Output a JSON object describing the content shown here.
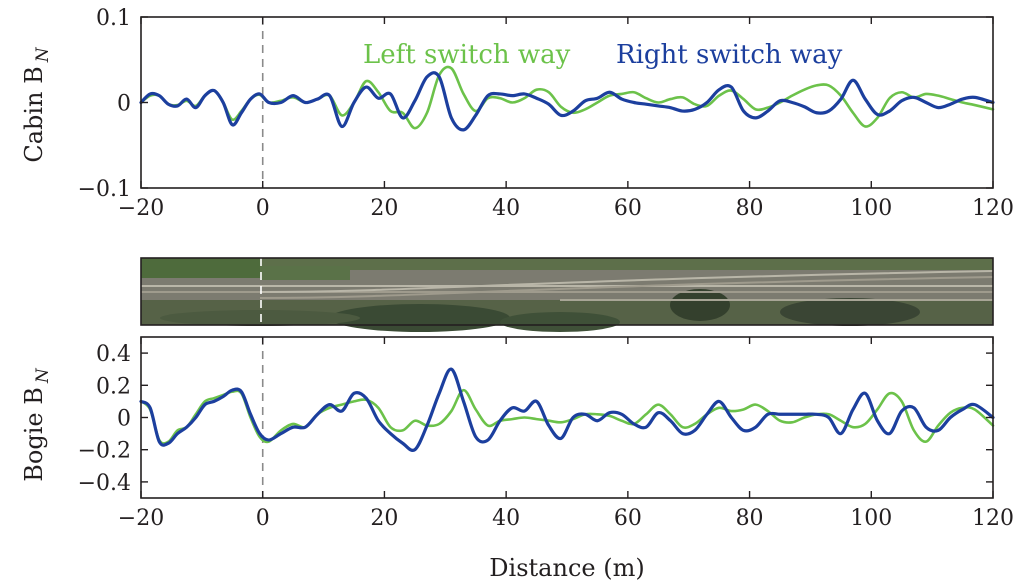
{
  "colors": {
    "left_switch": "#6cc24a",
    "right_switch": "#1c3f9e",
    "axis": "#231f20",
    "reference_line": "#8a8a8a"
  },
  "legend": {
    "left": "Left switch way",
    "right": "Right switch way"
  },
  "xlabel": "Distance (m)",
  "chart_data": [
    {
      "type": "line",
      "ylabel_main": "Cabin B",
      "ylabel_sub": "N",
      "xlim": [
        -20,
        120
      ],
      "ylim": [
        -0.1,
        0.1
      ],
      "xticks": [
        "−20",
        "0",
        "20",
        "40",
        "60",
        "80",
        "100",
        "120"
      ],
      "yticks": [
        "0.1",
        "0",
        "−0.1"
      ],
      "xtick_values": [
        -20,
        0,
        20,
        40,
        60,
        80,
        100,
        120
      ],
      "ytick_values": [
        0.1,
        0,
        -0.1
      ],
      "reference_x": 0,
      "series": [
        {
          "name": "Left switch way",
          "x": [
            -20,
            -18.5,
            -17,
            -15.5,
            -14,
            -12.5,
            -11,
            -9.5,
            -8,
            -6.5,
            -5,
            -3.5,
            -2,
            -0.5,
            1,
            3,
            5,
            7,
            9,
            11,
            13,
            15,
            17,
            19,
            21,
            23,
            25,
            27,
            29,
            31,
            33,
            35,
            37,
            39,
            41,
            43,
            45,
            47,
            49,
            51,
            53,
            55,
            57,
            59,
            61,
            63,
            65,
            67,
            69,
            71,
            73,
            75,
            77,
            79,
            81,
            83,
            85,
            87,
            89,
            91,
            93,
            95,
            97,
            99,
            101,
            103,
            105,
            107,
            109,
            111,
            113,
            115,
            117,
            120
          ],
          "y": [
            0.0,
            0.008,
            0.008,
            -0.002,
            -0.003,
            0.002,
            -0.004,
            0.008,
            0.014,
            0.0,
            -0.02,
            -0.01,
            0.004,
            0.009,
            0.0,
            0.002,
            0.006,
            0.0,
            0.004,
            0.008,
            -0.015,
            0.0,
            0.025,
            0.012,
            -0.01,
            -0.012,
            -0.03,
            -0.012,
            0.032,
            0.04,
            0.01,
            -0.01,
            0.005,
            0.005,
            0.0,
            0.005,
            0.015,
            0.012,
            -0.005,
            -0.012,
            -0.008,
            0.0,
            0.008,
            0.01,
            0.012,
            0.005,
            0.0,
            0.004,
            0.006,
            -0.002,
            -0.004,
            0.008,
            0.014,
            0.004,
            -0.008,
            -0.006,
            0.0,
            0.008,
            0.015,
            0.02,
            0.02,
            0.008,
            -0.012,
            -0.028,
            -0.018,
            0.005,
            0.012,
            0.006,
            0.01,
            0.008,
            0.004,
            0.0,
            -0.003,
            -0.008
          ]
        },
        {
          "name": "Right switch way",
          "x": [
            -20,
            -18.5,
            -17,
            -15.5,
            -14,
            -12.5,
            -11,
            -9.5,
            -8,
            -6.5,
            -5,
            -3.5,
            -2,
            -0.5,
            1,
            3,
            5,
            7,
            9,
            11,
            13,
            15,
            17,
            19,
            21,
            23,
            25,
            27,
            29,
            31,
            33,
            35,
            37,
            39,
            41,
            43,
            45,
            47,
            49,
            51,
            53,
            55,
            57,
            59,
            61,
            63,
            65,
            67,
            69,
            71,
            73,
            75,
            77,
            79,
            81,
            83,
            85,
            87,
            89,
            91,
            93,
            95,
            97,
            99,
            101,
            103,
            105,
            107,
            109,
            111,
            113,
            115,
            117,
            120
          ],
          "y": [
            0.0,
            0.01,
            0.008,
            -0.002,
            -0.004,
            0.004,
            -0.006,
            0.008,
            0.014,
            0.0,
            -0.026,
            -0.012,
            0.004,
            0.01,
            0.0,
            0.0,
            0.008,
            0.0,
            0.004,
            0.008,
            -0.028,
            0.0,
            0.018,
            0.005,
            0.01,
            -0.018,
            0.002,
            0.03,
            0.03,
            -0.018,
            -0.032,
            -0.015,
            0.008,
            0.01,
            0.008,
            0.01,
            0.005,
            -0.002,
            -0.015,
            -0.01,
            0.002,
            0.005,
            0.012,
            0.004,
            0.0,
            -0.002,
            -0.004,
            -0.006,
            -0.01,
            -0.008,
            0.0,
            0.015,
            0.018,
            -0.01,
            -0.018,
            -0.01,
            0.002,
            0.0,
            -0.005,
            -0.012,
            -0.01,
            0.004,
            0.026,
            0.004,
            -0.014,
            -0.01,
            0.002,
            0.006,
            0.0,
            -0.006,
            -0.002,
            0.004,
            0.006,
            0.0
          ]
        }
      ]
    },
    {
      "type": "line",
      "ylabel_main": "Bogie B",
      "ylabel_sub": "N",
      "xlim": [
        -20,
        120
      ],
      "ylim": [
        -0.5,
        0.5
      ],
      "xticks": [
        "−20",
        "0",
        "20",
        "40",
        "60",
        "80",
        "100",
        "120"
      ],
      "yticks": [
        "0.4",
        "0.2",
        "0",
        "−0.2",
        "−0.4"
      ],
      "xtick_values": [
        -20,
        0,
        20,
        40,
        60,
        80,
        100,
        120
      ],
      "ytick_values": [
        0.4,
        0.2,
        0,
        -0.2,
        -0.4
      ],
      "reference_x": 0,
      "series": [
        {
          "name": "Left switch way",
          "x": [
            -20,
            -18.5,
            -17,
            -15.5,
            -14,
            -12.5,
            -11,
            -9.5,
            -8,
            -6.5,
            -5,
            -3.5,
            -2,
            -0.5,
            1,
            3,
            5,
            7,
            9,
            11,
            13,
            15,
            17,
            19,
            21,
            23,
            25,
            27,
            29,
            31,
            33,
            35,
            37,
            39,
            41,
            43,
            45,
            47,
            49,
            51,
            53,
            55,
            57,
            59,
            61,
            63,
            65,
            67,
            69,
            71,
            73,
            75,
            77,
            79,
            81,
            83,
            85,
            87,
            89,
            91,
            93,
            95,
            97,
            99,
            101,
            103,
            105,
            107,
            109,
            111,
            113,
            115,
            117,
            120
          ],
          "y": [
            0.1,
            0.05,
            -0.14,
            -0.15,
            -0.08,
            -0.06,
            0.02,
            0.1,
            0.12,
            0.14,
            0.16,
            0.15,
            0.0,
            -0.12,
            -0.15,
            -0.08,
            -0.04,
            -0.06,
            0.02,
            0.06,
            0.08,
            0.1,
            0.11,
            0.06,
            -0.06,
            -0.08,
            -0.02,
            -0.05,
            -0.04,
            0.04,
            0.17,
            0.05,
            -0.05,
            -0.02,
            -0.01,
            0.0,
            -0.01,
            -0.02,
            -0.03,
            -0.01,
            0.02,
            0.02,
            0.01,
            -0.02,
            -0.04,
            0.02,
            0.08,
            0.02,
            -0.06,
            -0.04,
            0.02,
            0.06,
            0.04,
            0.05,
            0.08,
            0.04,
            -0.02,
            -0.03,
            0.0,
            0.02,
            0.02,
            -0.02,
            -0.06,
            -0.04,
            0.05,
            0.15,
            0.1,
            -0.08,
            -0.15,
            -0.05,
            0.03,
            0.06,
            0.05,
            -0.05
          ]
        },
        {
          "name": "Right switch way",
          "x": [
            -20,
            -18.5,
            -17,
            -15.5,
            -14,
            -12.5,
            -11,
            -9.5,
            -8,
            -6.5,
            -5,
            -3.5,
            -2,
            -0.5,
            1,
            3,
            5,
            7,
            9,
            11,
            13,
            15,
            17,
            19,
            21,
            23,
            25,
            27,
            29,
            31,
            33,
            35,
            37,
            39,
            41,
            43,
            45,
            47,
            49,
            51,
            53,
            55,
            57,
            59,
            61,
            63,
            65,
            67,
            69,
            71,
            73,
            75,
            77,
            79,
            81,
            83,
            85,
            87,
            89,
            91,
            93,
            95,
            97,
            99,
            101,
            103,
            105,
            107,
            109,
            111,
            113,
            115,
            117,
            120
          ],
          "y": [
            0.1,
            0.06,
            -0.15,
            -0.16,
            -0.1,
            -0.06,
            0.0,
            0.08,
            0.1,
            0.13,
            0.17,
            0.16,
            0.02,
            -0.1,
            -0.14,
            -0.1,
            -0.06,
            -0.06,
            0.02,
            0.08,
            0.04,
            0.15,
            0.12,
            -0.02,
            -0.1,
            -0.16,
            -0.2,
            -0.05,
            0.15,
            0.3,
            0.1,
            -0.12,
            -0.14,
            -0.02,
            0.06,
            0.04,
            0.1,
            -0.05,
            -0.13,
            0.0,
            0.02,
            -0.02,
            0.03,
            0.02,
            -0.04,
            -0.06,
            0.03,
            -0.02,
            -0.1,
            -0.08,
            0.02,
            0.1,
            0.0,
            -0.08,
            -0.06,
            0.02,
            0.02,
            0.02,
            0.02,
            0.02,
            0.0,
            -0.1,
            0.05,
            0.15,
            -0.02,
            -0.1,
            0.04,
            0.06,
            -0.06,
            -0.08,
            0.0,
            0.05,
            0.08,
            0.0
          ]
        }
      ]
    }
  ]
}
